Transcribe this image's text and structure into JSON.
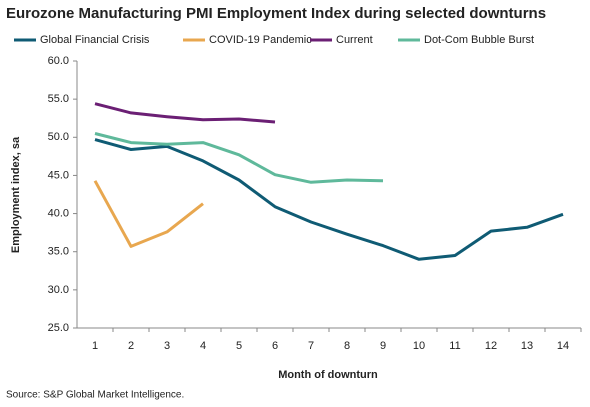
{
  "chart_data": {
    "type": "line",
    "title": "Eurozone Manufacturing PMI Employment Index during selected downturns",
    "x_label": "Month of downturn",
    "y_label": "Employment index, sa",
    "source": "Source: S&P Global Market Intelligence.",
    "categories": [
      "1",
      "2",
      "3",
      "4",
      "5",
      "6",
      "7",
      "8",
      "9",
      "10",
      "11",
      "12",
      "13",
      "14"
    ],
    "series": [
      {
        "name": "Global Financial Crisis",
        "color": "#0f5b74",
        "values": [
          49.7,
          48.4,
          48.8,
          46.9,
          44.4,
          40.9,
          38.9,
          37.3,
          35.8,
          34.0,
          34.5,
          37.7,
          38.2,
          39.9
        ]
      },
      {
        "name": "COVID-19 Pandemic",
        "color": "#e8a74f",
        "values": [
          44.3,
          35.7,
          37.6,
          41.3,
          null,
          null,
          null,
          null,
          null,
          null,
          null,
          null,
          null,
          null
        ]
      },
      {
        "name": "Current",
        "color": "#6b1f74",
        "values": [
          54.4,
          53.2,
          52.7,
          52.3,
          52.4,
          52.0,
          null,
          null,
          null,
          null,
          null,
          null,
          null,
          null
        ]
      },
      {
        "name": "Dot-Com Bubble Burst",
        "color": "#5fb99b",
        "values": [
          50.5,
          49.3,
          49.1,
          49.3,
          47.7,
          45.1,
          44.1,
          44.4,
          44.3,
          null,
          null,
          null,
          null,
          null
        ]
      }
    ],
    "ylim": [
      25,
      60
    ],
    "yticks": [
      {
        "value": 25,
        "label": "25.0"
      },
      {
        "value": 30,
        "label": "30.0"
      },
      {
        "value": 35,
        "label": "35.0"
      },
      {
        "value": 40,
        "label": "40.0"
      },
      {
        "value": 45,
        "label": "45.0"
      },
      {
        "value": 50,
        "label": "50.0"
      },
      {
        "value": 55,
        "label": "55.0"
      },
      {
        "value": 60,
        "label": "60.0"
      }
    ]
  }
}
